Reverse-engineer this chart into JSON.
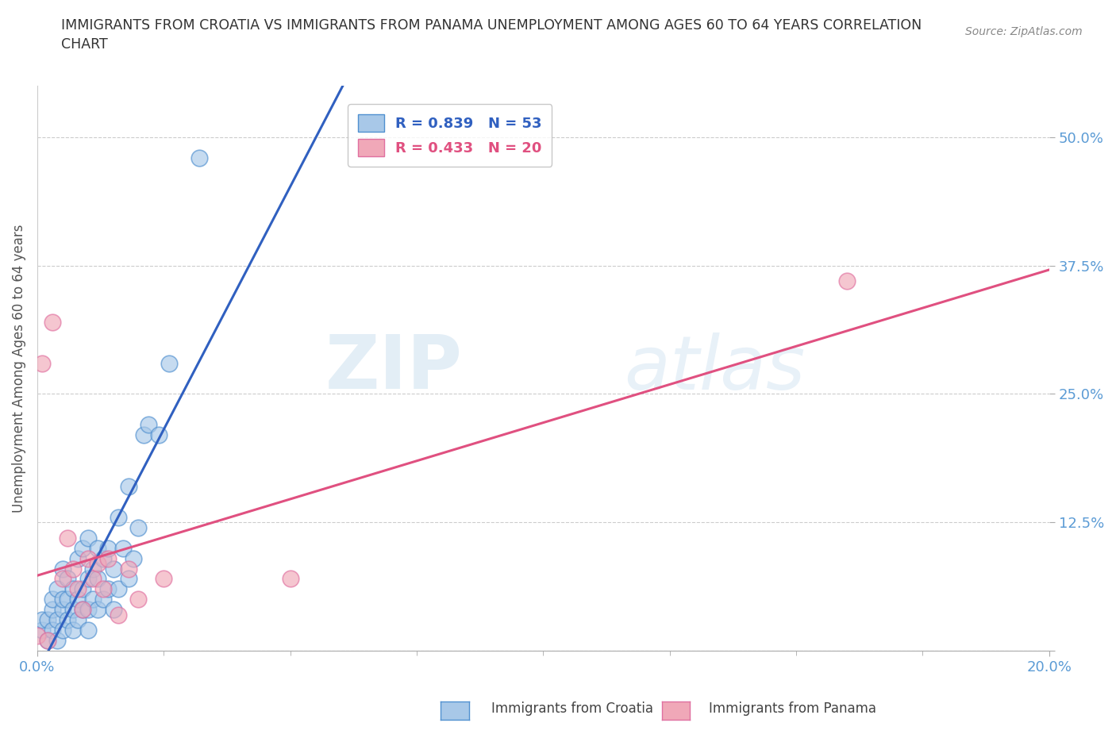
{
  "title": "IMMIGRANTS FROM CROATIA VS IMMIGRANTS FROM PANAMA UNEMPLOYMENT AMONG AGES 60 TO 64 YEARS CORRELATION\nCHART",
  "source": "Source: ZipAtlas.com",
  "ylabel": "Unemployment Among Ages 60 to 64 years",
  "xlim": [
    0.0,
    0.2
  ],
  "ylim": [
    0.0,
    0.55
  ],
  "x_ticks": [
    0.0,
    0.2
  ],
  "x_tick_labels": [
    "0.0%",
    "20.0%"
  ],
  "y_ticks": [
    0.0,
    0.125,
    0.25,
    0.375,
    0.5
  ],
  "y_tick_labels": [
    "",
    "12.5%",
    "25.0%",
    "37.5%",
    "50.0%"
  ],
  "croatia_color": "#a8c8e8",
  "panama_color": "#f0a8b8",
  "croatia_line_color": "#3060c0",
  "panama_line_color": "#e05080",
  "croatia_edge_color": "#5090d0",
  "panama_edge_color": "#e070a0",
  "croatia_R": 0.839,
  "croatia_N": 53,
  "panama_R": 0.433,
  "panama_N": 20,
  "watermark_zip": "ZIP",
  "watermark_atlas": "atlas",
  "croatia_scatter_x": [
    0.001,
    0.001,
    0.002,
    0.002,
    0.003,
    0.003,
    0.003,
    0.004,
    0.004,
    0.004,
    0.005,
    0.005,
    0.005,
    0.005,
    0.006,
    0.006,
    0.006,
    0.007,
    0.007,
    0.007,
    0.008,
    0.008,
    0.008,
    0.009,
    0.009,
    0.009,
    0.01,
    0.01,
    0.01,
    0.01,
    0.011,
    0.011,
    0.012,
    0.012,
    0.012,
    0.013,
    0.013,
    0.014,
    0.014,
    0.015,
    0.015,
    0.016,
    0.016,
    0.017,
    0.018,
    0.018,
    0.019,
    0.02,
    0.021,
    0.022,
    0.024,
    0.026,
    0.032
  ],
  "croatia_scatter_y": [
    0.02,
    0.03,
    0.01,
    0.03,
    0.02,
    0.04,
    0.05,
    0.01,
    0.03,
    0.06,
    0.02,
    0.04,
    0.05,
    0.08,
    0.03,
    0.05,
    0.07,
    0.02,
    0.04,
    0.06,
    0.03,
    0.05,
    0.09,
    0.04,
    0.06,
    0.1,
    0.02,
    0.04,
    0.07,
    0.11,
    0.05,
    0.08,
    0.04,
    0.07,
    0.1,
    0.05,
    0.09,
    0.06,
    0.1,
    0.04,
    0.08,
    0.06,
    0.13,
    0.1,
    0.07,
    0.16,
    0.09,
    0.12,
    0.21,
    0.22,
    0.21,
    0.28,
    0.48
  ],
  "panama_scatter_x": [
    0.0,
    0.001,
    0.002,
    0.003,
    0.005,
    0.006,
    0.007,
    0.008,
    0.009,
    0.01,
    0.011,
    0.012,
    0.013,
    0.014,
    0.016,
    0.018,
    0.02,
    0.025,
    0.05,
    0.16
  ],
  "panama_scatter_y": [
    0.015,
    0.28,
    0.01,
    0.32,
    0.07,
    0.11,
    0.08,
    0.06,
    0.04,
    0.09,
    0.07,
    0.085,
    0.06,
    0.09,
    0.035,
    0.08,
    0.05,
    0.07,
    0.07,
    0.36
  ]
}
